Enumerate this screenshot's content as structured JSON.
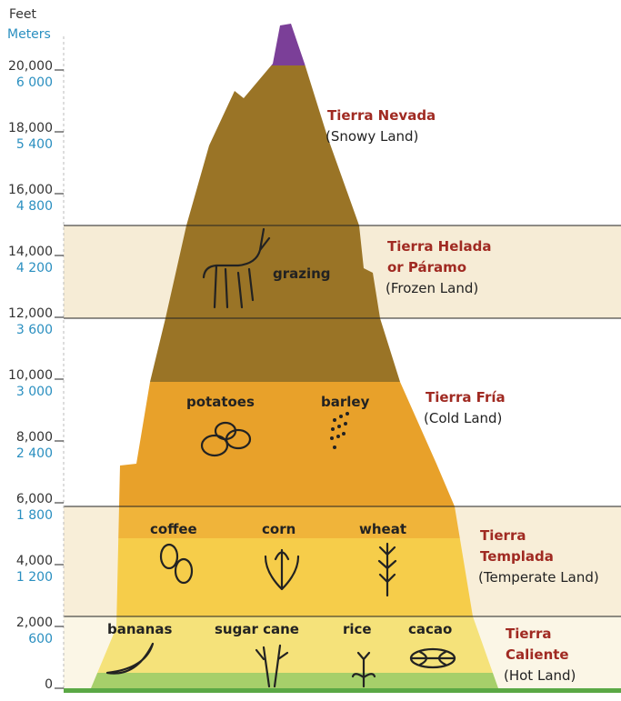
{
  "axis": {
    "feet_unit": "Feet",
    "meters_unit": "Meters",
    "feet": [
      "20,000",
      "18,000",
      "16,000",
      "14,000",
      "12,000",
      "10,000",
      "8,000",
      "6,000",
      "4,000",
      "2,000",
      "0"
    ],
    "meters": [
      "6 000",
      "5 400",
      "4 800",
      "4 200",
      "3 600",
      "3 000",
      "2 400",
      "1 800",
      "1 200",
      "600"
    ]
  },
  "zones": [
    {
      "name": [
        "Tierra Nevada"
      ],
      "english": "(Snowy Land)"
    },
    {
      "name": [
        "Tierra Helada",
        "or Páramo"
      ],
      "english": "(Frozen Land)"
    },
    {
      "name": [
        "Tierra Fría"
      ],
      "english": "(Cold Land)"
    },
    {
      "name": [
        "Tierra",
        "Templada"
      ],
      "english": "(Temperate Land)"
    },
    {
      "name": [
        "Tierra",
        "Caliente"
      ],
      "english": "(Hot Land)"
    }
  ],
  "crops": [
    "grazing",
    "potatoes",
    "barley",
    "coffee",
    "corn",
    "wheat",
    "bananas",
    "sugar cane",
    "rice",
    "cacao"
  ]
}
